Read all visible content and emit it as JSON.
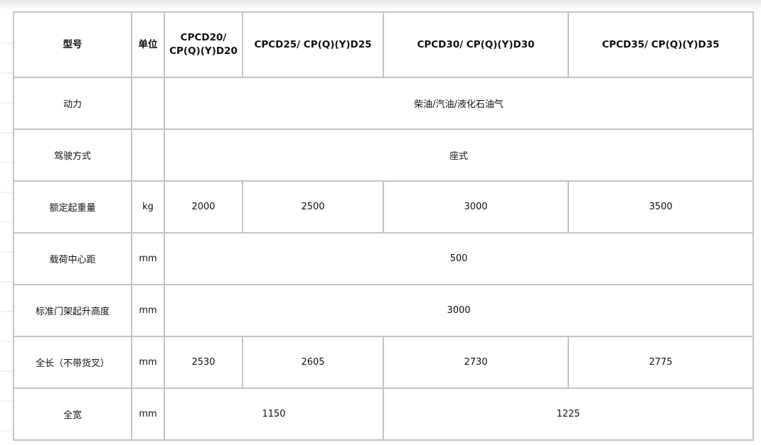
{
  "table": {
    "header": [
      "型号",
      "单位",
      "CPCD20/ CP(Q)(Y)D20",
      "CPCD25/ CP(Q)(Y)D25",
      "CPCD30/ CP(Q)(Y)D30",
      "CPCD35/ CP(Q)(Y)D35"
    ],
    "rows": [
      {
        "label": "动力",
        "unit": "",
        "merged": "柴油/汽油/液化石油气"
      },
      {
        "label": "驾驶方式",
        "unit": "",
        "merged": "座式"
      },
      {
        "label": "额定起重量",
        "unit": "kg",
        "values": [
          "2000",
          "2500",
          "3000",
          "3500"
        ]
      },
      {
        "label": "载荷中心距",
        "unit": "mm",
        "merged": "500"
      },
      {
        "label": "标准门架起升高度",
        "unit": "mm",
        "merged": "3000"
      },
      {
        "label": "全长（不带货叉）",
        "unit": "mm",
        "values": [
          "2530",
          "2605",
          "2730",
          "2775"
        ]
      },
      {
        "label": "全宽",
        "unit": "mm",
        "pair": [
          "1150",
          "1225"
        ]
      }
    ]
  }
}
